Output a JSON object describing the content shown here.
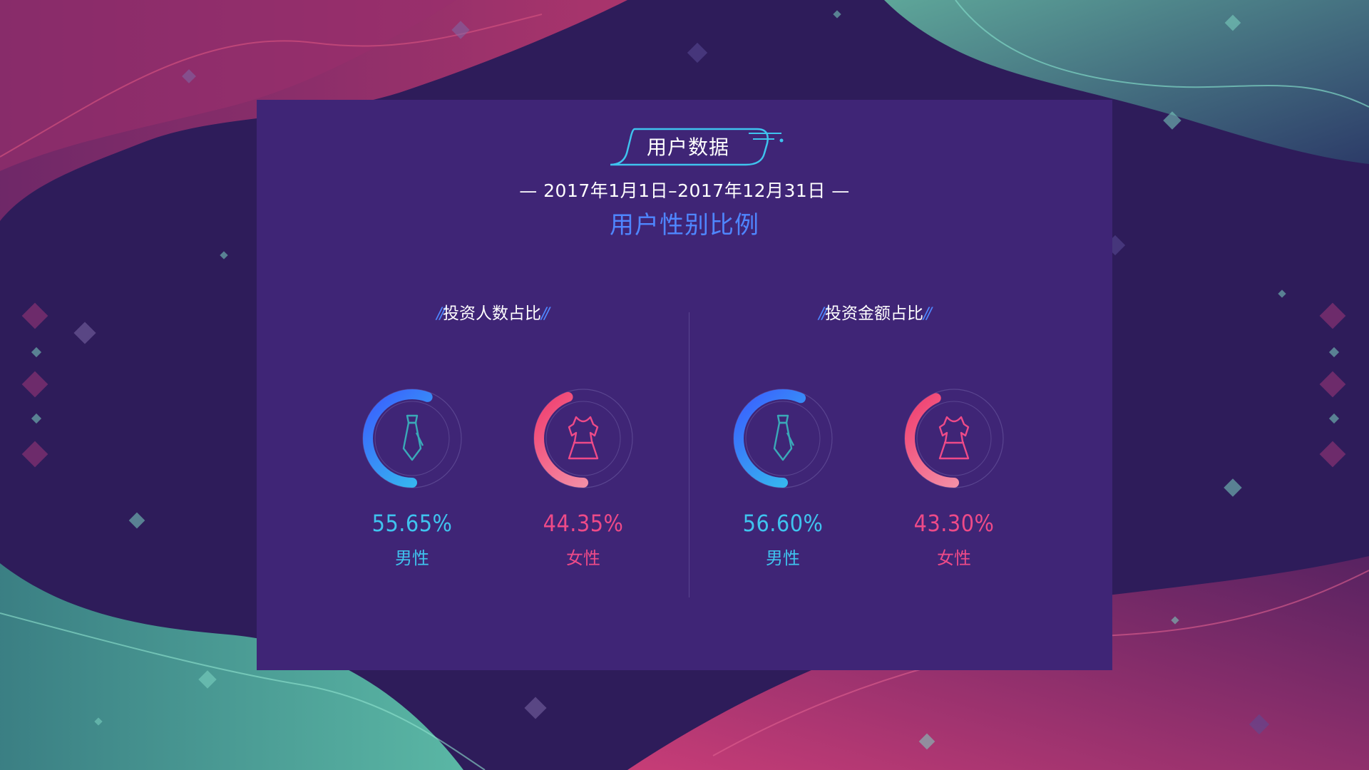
{
  "title": "用户数据",
  "date_range": "— 2017年1月1日–2017年12月31日 —",
  "subtitle": "用户性别比例",
  "colors": {
    "male": "#3fc3ee",
    "female": "#ee4a88",
    "accent": "#4f86ff"
  },
  "chart_data": [
    {
      "type": "pie",
      "title": "投资人数占比",
      "categories": [
        "男性",
        "女性"
      ],
      "values": [
        55.65,
        44.35
      ],
      "labels": [
        "55.65%",
        "44.35%"
      ],
      "icons": [
        "necktie-icon",
        "dress-icon"
      ]
    },
    {
      "type": "pie",
      "title": "投资金额占比",
      "categories": [
        "男性",
        "女性"
      ],
      "values": [
        56.6,
        43.3
      ],
      "labels": [
        "56.60%",
        "43.30%"
      ],
      "icons": [
        "necktie-icon",
        "dress-icon"
      ]
    }
  ]
}
